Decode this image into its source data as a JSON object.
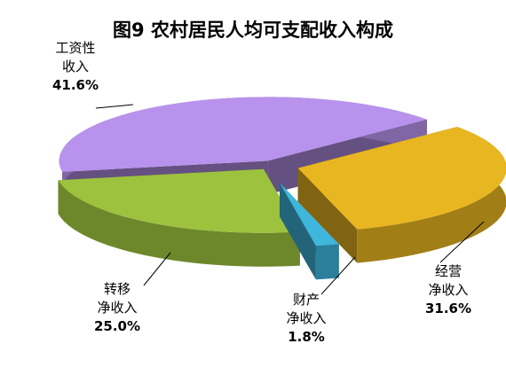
{
  "chart_data": {
    "type": "pie3d",
    "title": "图9 农村居民人均可支配收入构成",
    "categories": [
      "工资性\n收入",
      "经营\n净收入",
      "财产\n净收入",
      "转移\n净收入"
    ],
    "values": [
      41.6,
      31.6,
      1.8,
      25.0
    ],
    "value_labels": [
      "41.6%",
      "31.6%",
      "1.8%",
      "25.0%"
    ],
    "colors": [
      "#b892ec",
      "#e8b620",
      "#3fb6dc",
      "#9cc23e"
    ]
  }
}
